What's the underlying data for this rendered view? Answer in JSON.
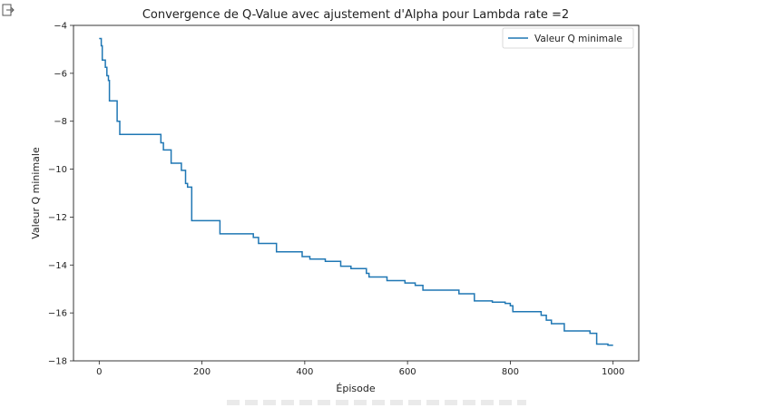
{
  "cell": {
    "output_icon": "output-expand-icon"
  },
  "chart_data": {
    "type": "line",
    "title": "Convergence de Q-Value avec ajustement d'Alpha pour Lambda rate =2",
    "xlabel": "Épisode",
    "ylabel": "Valeur Q minimale",
    "xlim": [
      -50,
      1050
    ],
    "ylim": [
      -18,
      -4
    ],
    "xticks": [
      0,
      200,
      400,
      600,
      800,
      1000
    ],
    "yticks": [
      -18,
      -16,
      -14,
      -12,
      -10,
      -8,
      -6,
      -4
    ],
    "xtick_labels": [
      "0",
      "200",
      "400",
      "600",
      "800",
      "1000"
    ],
    "ytick_labels": [
      "−18",
      "−16",
      "−14",
      "−12",
      "−10",
      "−8",
      "−6",
      "−4"
    ],
    "grid": false,
    "legend": {
      "position": "top-right",
      "entries": [
        "Valeur Q minimale"
      ]
    },
    "series": [
      {
        "name": "Valeur Q minimale",
        "color": "#1f77b4",
        "step": true,
        "points": [
          [
            0,
            -4.55
          ],
          [
            4,
            -4.85
          ],
          [
            6,
            -5.45
          ],
          [
            12,
            -5.75
          ],
          [
            15,
            -6.1
          ],
          [
            18,
            -6.3
          ],
          [
            20,
            -7.15
          ],
          [
            35,
            -8.0
          ],
          [
            40,
            -8.55
          ],
          [
            120,
            -8.9
          ],
          [
            125,
            -9.2
          ],
          [
            140,
            -9.75
          ],
          [
            160,
            -10.05
          ],
          [
            168,
            -10.6
          ],
          [
            172,
            -10.75
          ],
          [
            180,
            -12.15
          ],
          [
            235,
            -12.7
          ],
          [
            300,
            -12.85
          ],
          [
            310,
            -13.1
          ],
          [
            345,
            -13.45
          ],
          [
            395,
            -13.65
          ],
          [
            410,
            -13.75
          ],
          [
            440,
            -13.85
          ],
          [
            470,
            -14.05
          ],
          [
            490,
            -14.15
          ],
          [
            520,
            -14.35
          ],
          [
            525,
            -14.5
          ],
          [
            560,
            -14.65
          ],
          [
            595,
            -14.75
          ],
          [
            615,
            -14.85
          ],
          [
            630,
            -15.05
          ],
          [
            700,
            -15.2
          ],
          [
            730,
            -15.5
          ],
          [
            765,
            -15.55
          ],
          [
            790,
            -15.6
          ],
          [
            800,
            -15.7
          ],
          [
            805,
            -15.95
          ],
          [
            860,
            -16.1
          ],
          [
            870,
            -16.3
          ],
          [
            880,
            -16.45
          ],
          [
            905,
            -16.75
          ],
          [
            955,
            -16.85
          ],
          [
            968,
            -17.3
          ],
          [
            990,
            -17.35
          ],
          [
            1000,
            -17.35
          ]
        ]
      }
    ]
  }
}
